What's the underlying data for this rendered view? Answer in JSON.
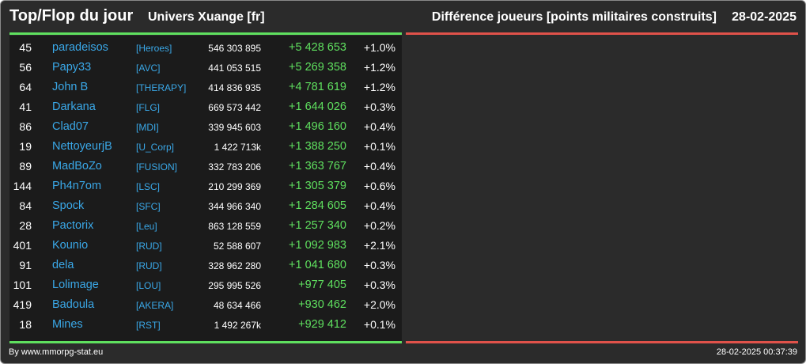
{
  "header": {
    "title": "Top/Flop du jour",
    "universe": "Univers Xuange [fr]",
    "metric": "Différence joueurs [points militaires construits]",
    "date": "28-02-2025"
  },
  "rows": [
    {
      "rank": "45",
      "name": "paradeisos",
      "alliance": "[Heroes]",
      "points": "546 303 895",
      "diff": "+5 428 653",
      "pct": "+1.0%"
    },
    {
      "rank": "56",
      "name": "Papy33",
      "alliance": "[AVC]",
      "points": "441 053 515",
      "diff": "+5 269 358",
      "pct": "+1.2%"
    },
    {
      "rank": "64",
      "name": "John B",
      "alliance": "[THERAPY]",
      "points": "414 836 935",
      "diff": "+4 781 619",
      "pct": "+1.2%"
    },
    {
      "rank": "41",
      "name": "Darkana",
      "alliance": "[FLG]",
      "points": "669 573 442",
      "diff": "+1 644 026",
      "pct": "+0.3%"
    },
    {
      "rank": "86",
      "name": "Clad07",
      "alliance": "[MDI]",
      "points": "339 945 603",
      "diff": "+1 496 160",
      "pct": "+0.4%"
    },
    {
      "rank": "19",
      "name": "NettoyeurjB",
      "alliance": "[U_Corp]",
      "points": "1 422 713k",
      "diff": "+1 388 250",
      "pct": "+0.1%"
    },
    {
      "rank": "89",
      "name": "MadBoZo",
      "alliance": "[FUSION]",
      "points": "332 783 206",
      "diff": "+1 363 767",
      "pct": "+0.4%"
    },
    {
      "rank": "144",
      "name": "Ph4n7om",
      "alliance": "[LSC]",
      "points": "210 299 369",
      "diff": "+1 305 379",
      "pct": "+0.6%"
    },
    {
      "rank": "84",
      "name": "Spock",
      "alliance": "[SFC]",
      "points": "344 966 340",
      "diff": "+1 284 605",
      "pct": "+0.4%"
    },
    {
      "rank": "28",
      "name": "Pactorix",
      "alliance": "[Leu]",
      "points": "863 128 559",
      "diff": "+1 257 340",
      "pct": "+0.2%"
    },
    {
      "rank": "401",
      "name": "Kounio",
      "alliance": "[RUD]",
      "points": "52 588 607",
      "diff": "+1 092 983",
      "pct": "+2.1%"
    },
    {
      "rank": "91",
      "name": "dela",
      "alliance": "[RUD]",
      "points": "328 962 280",
      "diff": "+1 041 680",
      "pct": "+0.3%"
    },
    {
      "rank": "101",
      "name": "Lolimage",
      "alliance": "[LOU]",
      "points": "295 995 526",
      "diff": "+977 405",
      "pct": "+0.3%"
    },
    {
      "rank": "419",
      "name": "Badoula",
      "alliance": "[AKERA]",
      "points": "48 634 466",
      "diff": "+930 462",
      "pct": "+2.0%"
    },
    {
      "rank": "18",
      "name": "Mines",
      "alliance": "[RST]",
      "points": "1 492 267k",
      "diff": "+929 412",
      "pct": "+0.1%"
    }
  ],
  "footer": {
    "credit": "By www.mmorpg-stat.eu",
    "timestamp": "28-02-2025 00:37:39"
  },
  "colors": {
    "background": "#2b2b2b",
    "left_panel": "#1b1b1b",
    "accent_green": "#5fe05f",
    "accent_red": "#e0524a",
    "link_blue": "#3aa8e8"
  }
}
